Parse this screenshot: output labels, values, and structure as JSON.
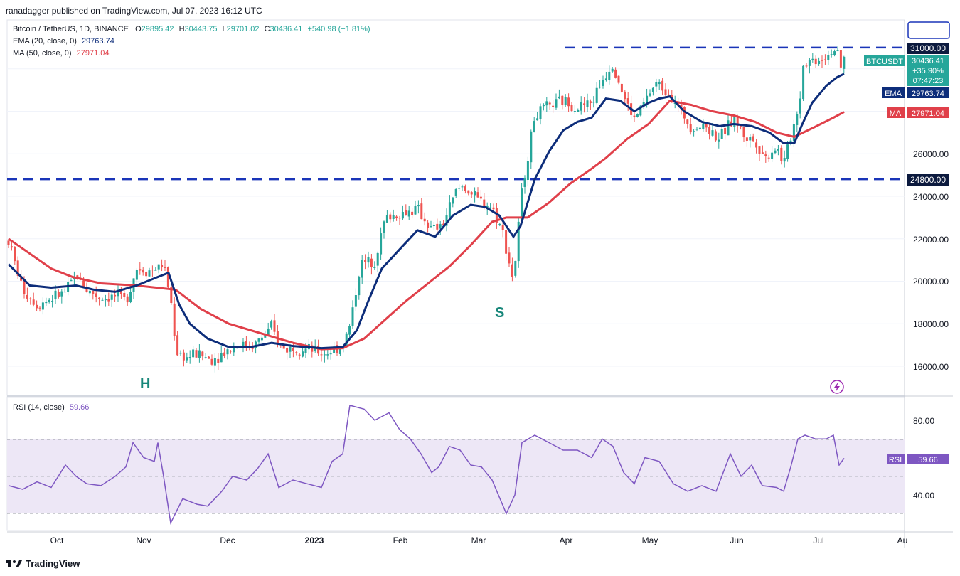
{
  "header": {
    "published": "ranadagger published on TradingView.com, Jul 07, 2023 16:12 UTC"
  },
  "symbol_line": {
    "name": "Bitcoin / TetherUS, 1D, BINANCE",
    "o_label": "O",
    "o": "29895.42",
    "h_label": "H",
    "h": "30443.75",
    "l_label": "L",
    "l": "29701.02",
    "c_label": "C",
    "c": "30436.41",
    "change": "+540.98 (+1.81%)"
  },
  "ema_line": {
    "label": "EMA (20, close, 0)",
    "value": "29763.74"
  },
  "ma_line": {
    "label": "MA (50, close, 0)",
    "value": "27971.04"
  },
  "rsi_line": {
    "label": "RSI (14, close)",
    "value": "59.66"
  },
  "price_axis": {
    "ticks": [
      "16000.00",
      "18000.00",
      "20000.00",
      "22000.00",
      "24000.00",
      "26000.00"
    ],
    "tags": {
      "resistance": "31000.00",
      "support": "24800.00",
      "symbol": "BTCUSDT",
      "price": "30436.41",
      "change_pct": "+35.90%",
      "countdown": "07:47:23",
      "ema_name": "EMA",
      "ema_value": "29763.74",
      "ma_name": "MA",
      "ma_value": "27971.04"
    }
  },
  "rsi_axis": {
    "ticks": [
      "80.00",
      "40.00"
    ],
    "tag_name": "RSI",
    "tag_value": "59.66"
  },
  "time_axis": {
    "labels": [
      "Oct",
      "Nov",
      "Dec",
      "2023",
      "Feb",
      "Mar",
      "Apr",
      "May",
      "Jun",
      "Jul",
      "Au"
    ]
  },
  "annotations": {
    "h": "H",
    "s": "S"
  },
  "footer": {
    "brand": "TradingView"
  },
  "colors": {
    "up": "#26a69a",
    "down": "#ef5350",
    "ema": "#0d2d7a",
    "ma": "#e0404a",
    "line": "#1a35b8",
    "rsi": "#7e57c2",
    "rsi_band": "#ede7f6"
  },
  "chart_data": {
    "type": "candlestick",
    "symbol": "Bitcoin / TetherUS, 1D, BINANCE",
    "ylim": [
      15000,
      31500
    ],
    "horizontal_levels": [
      31000,
      24800
    ],
    "ema20_path": [
      [
        0,
        20800
      ],
      [
        30,
        19800
      ],
      [
        60,
        19700
      ],
      [
        95,
        19800
      ],
      [
        120,
        19600
      ],
      [
        150,
        19500
      ],
      [
        180,
        19800
      ],
      [
        210,
        20200
      ],
      [
        225,
        20400
      ],
      [
        240,
        18900
      ],
      [
        255,
        18000
      ],
      [
        280,
        17300
      ],
      [
        310,
        16900
      ],
      [
        340,
        16900
      ],
      [
        370,
        17100
      ],
      [
        400,
        16950
      ],
      [
        440,
        16850
      ],
      [
        470,
        16900
      ],
      [
        490,
        17700
      ],
      [
        505,
        19000
      ],
      [
        525,
        20600
      ],
      [
        550,
        21500
      ],
      [
        575,
        22400
      ],
      [
        600,
        22100
      ],
      [
        625,
        23100
      ],
      [
        650,
        23600
      ],
      [
        670,
        23500
      ],
      [
        690,
        23100
      ],
      [
        710,
        22100
      ],
      [
        720,
        22600
      ],
      [
        740,
        24800
      ],
      [
        760,
        26100
      ],
      [
        780,
        27100
      ],
      [
        800,
        27500
      ],
      [
        820,
        27700
      ],
      [
        840,
        28600
      ],
      [
        860,
        28500
      ],
      [
        880,
        28000
      ],
      [
        900,
        28400
      ],
      [
        915,
        28600
      ],
      [
        930,
        28700
      ],
      [
        950,
        28000
      ],
      [
        975,
        27500
      ],
      [
        1000,
        27300
      ],
      [
        1020,
        27400
      ],
      [
        1045,
        27300
      ],
      [
        1070,
        27000
      ],
      [
        1090,
        26500
      ],
      [
        1105,
        26500
      ],
      [
        1115,
        27300
      ],
      [
        1130,
        28400
      ],
      [
        1150,
        29200
      ],
      [
        1165,
        29600
      ],
      [
        1175,
        29763
      ]
    ],
    "ma50_path": [
      [
        0,
        22000
      ],
      [
        30,
        21300
      ],
      [
        60,
        20600
      ],
      [
        90,
        20200
      ],
      [
        130,
        19900
      ],
      [
        180,
        19800
      ],
      [
        235,
        19600
      ],
      [
        270,
        18700
      ],
      [
        310,
        18000
      ],
      [
        360,
        17500
      ],
      [
        400,
        17100
      ],
      [
        440,
        16800
      ],
      [
        470,
        16850
      ],
      [
        500,
        17300
      ],
      [
        530,
        18200
      ],
      [
        560,
        19100
      ],
      [
        590,
        19900
      ],
      [
        620,
        20700
      ],
      [
        650,
        21700
      ],
      [
        680,
        22800
      ],
      [
        700,
        23000
      ],
      [
        730,
        23000
      ],
      [
        760,
        23700
      ],
      [
        790,
        24600
      ],
      [
        820,
        25300
      ],
      [
        840,
        25800
      ],
      [
        870,
        26700
      ],
      [
        900,
        27400
      ],
      [
        930,
        28500
      ],
      [
        960,
        28300
      ],
      [
        990,
        28000
      ],
      [
        1020,
        27800
      ],
      [
        1050,
        27500
      ],
      [
        1080,
        27000
      ],
      [
        1105,
        26800
      ],
      [
        1130,
        27200
      ],
      [
        1160,
        27700
      ],
      [
        1175,
        27971
      ]
    ],
    "candles": {
      "anchors": [
        [
          0,
          21900
        ],
        [
          20,
          19600
        ],
        [
          40,
          18900
        ],
        [
          60,
          19200
        ],
        [
          80,
          19500
        ],
        [
          95,
          20300
        ],
        [
          110,
          19600
        ],
        [
          130,
          19200
        ],
        [
          150,
          19300
        ],
        [
          165,
          19100
        ],
        [
          180,
          20600
        ],
        [
          200,
          20500
        ],
        [
          218,
          20800
        ],
        [
          228,
          19200
        ],
        [
          236,
          16700
        ],
        [
          250,
          16400
        ],
        [
          265,
          16600
        ],
        [
          285,
          16300
        ],
        [
          300,
          16600
        ],
        [
          320,
          17000
        ],
        [
          345,
          17000
        ],
        [
          370,
          17800
        ],
        [
          385,
          16800
        ],
        [
          405,
          16900
        ],
        [
          430,
          16700
        ],
        [
          445,
          16600
        ],
        [
          470,
          17000
        ],
        [
          480,
          17900
        ],
        [
          495,
          20800
        ],
        [
          515,
          21000
        ],
        [
          530,
          23000
        ],
        [
          555,
          23200
        ],
        [
          575,
          23400
        ],
        [
          595,
          22400
        ],
        [
          610,
          22600
        ],
        [
          630,
          24300
        ],
        [
          640,
          24500
        ],
        [
          660,
          23800
        ],
        [
          680,
          23500
        ],
        [
          695,
          22300
        ],
        [
          710,
          20000
        ],
        [
          722,
          24300
        ],
        [
          740,
          27800
        ],
        [
          760,
          28200
        ],
        [
          780,
          28500
        ],
        [
          800,
          28200
        ],
        [
          820,
          28400
        ],
        [
          835,
          29500
        ],
        [
          850,
          30300
        ],
        [
          865,
          28700
        ],
        [
          880,
          27600
        ],
        [
          895,
          28500
        ],
        [
          910,
          29300
        ],
        [
          930,
          28900
        ],
        [
          945,
          28000
        ],
        [
          960,
          27300
        ],
        [
          980,
          27300
        ],
        [
          1000,
          26700
        ],
        [
          1020,
          27700
        ],
        [
          1035,
          26800
        ],
        [
          1050,
          26600
        ],
        [
          1065,
          25800
        ],
        [
          1080,
          26400
        ],
        [
          1090,
          25500
        ],
        [
          1100,
          26800
        ],
        [
          1112,
          28400
        ],
        [
          1118,
          30300
        ],
        [
          1130,
          30400
        ],
        [
          1145,
          30500
        ],
        [
          1155,
          30800
        ],
        [
          1163,
          30900
        ],
        [
          1170,
          30000
        ],
        [
          1175,
          30436
        ]
      ]
    }
  }
}
